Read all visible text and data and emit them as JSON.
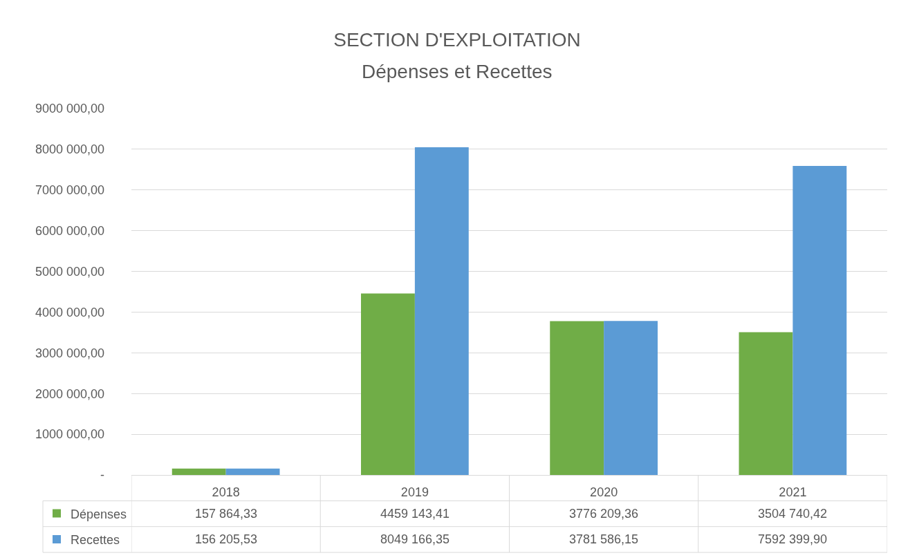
{
  "chart_data": {
    "type": "bar",
    "title": "SECTION D'EXPLOITATION",
    "subtitle": "Dépenses et Recettes",
    "categories": [
      "2018",
      "2019",
      "2020",
      "2021"
    ],
    "series": [
      {
        "name": "Dépenses",
        "color": "#70ad47",
        "values": [
          157864.33,
          4459143.41,
          3776209.36,
          3504740.42
        ],
        "value_labels": [
          "157 864,33",
          "4459 143,41",
          "3776 209,36",
          "3504 740,42"
        ]
      },
      {
        "name": "Recettes",
        "color": "#5b9bd5",
        "values": [
          156205.53,
          8049166.35,
          3781586.15,
          7592399.9
        ],
        "value_labels": [
          "156 205,53",
          "8049 166,35",
          "3781 586,15",
          "7592 399,90"
        ]
      }
    ],
    "ylim": [
      0,
      9000000
    ],
    "yticks": [
      {
        "value": 0,
        "label": "-"
      },
      {
        "value": 1000000,
        "label": "1000 000,00"
      },
      {
        "value": 2000000,
        "label": "2000 000,00"
      },
      {
        "value": 3000000,
        "label": "3000 000,00"
      },
      {
        "value": 4000000,
        "label": "4000 000,00"
      },
      {
        "value": 5000000,
        "label": "5000 000,00"
      },
      {
        "value": 6000000,
        "label": "6000 000,00"
      },
      {
        "value": 7000000,
        "label": "7000 000,00"
      },
      {
        "value": 8000000,
        "label": "8000 000,00"
      },
      {
        "value": 9000000,
        "label": "9000 000,00"
      }
    ],
    "grid": "y",
    "legend": "bottom left"
  }
}
